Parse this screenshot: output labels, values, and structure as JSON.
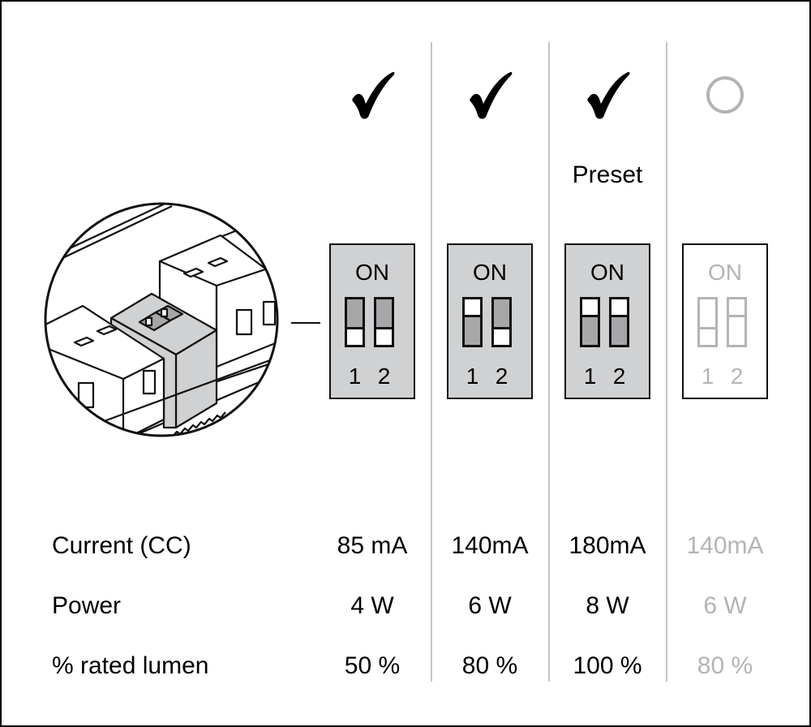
{
  "columns": [
    {
      "status_icon": "checkmark-icon",
      "preset": "",
      "on_label": "ON",
      "switches": [
        {
          "num": "1",
          "state": "off"
        },
        {
          "num": "2",
          "state": "off"
        }
      ],
      "current": "85 mA",
      "power": "4 W",
      "lumen": "50 %",
      "active": true
    },
    {
      "status_icon": "checkmark-icon",
      "preset": "",
      "on_label": "ON",
      "switches": [
        {
          "num": "1",
          "state": "on"
        },
        {
          "num": "2",
          "state": "off"
        }
      ],
      "current": "140mA",
      "power": "6 W",
      "lumen": "80 %",
      "active": true
    },
    {
      "status_icon": "checkmark-icon",
      "preset": "Preset",
      "on_label": "ON",
      "switches": [
        {
          "num": "1",
          "state": "on"
        },
        {
          "num": "2",
          "state": "on"
        }
      ],
      "current": "180mA",
      "power": "8 W",
      "lumen": "100 %",
      "active": true
    },
    {
      "status_icon": "circle-icon",
      "preset": "",
      "on_label": "ON",
      "switches": [
        {
          "num": "1",
          "state": "off"
        },
        {
          "num": "2",
          "state": "on"
        }
      ],
      "current": "140mA",
      "power": "6 W",
      "lumen": "80 %",
      "active": false
    }
  ],
  "rows": {
    "current": "Current (CC)",
    "power": "Power",
    "lumen": "% rated lumen"
  },
  "colors": {
    "switch_bg": "#d0d1d3",
    "lever": "#a6a7a9",
    "inactive": "#b4b4b4",
    "divider": "#c4c4c4"
  }
}
